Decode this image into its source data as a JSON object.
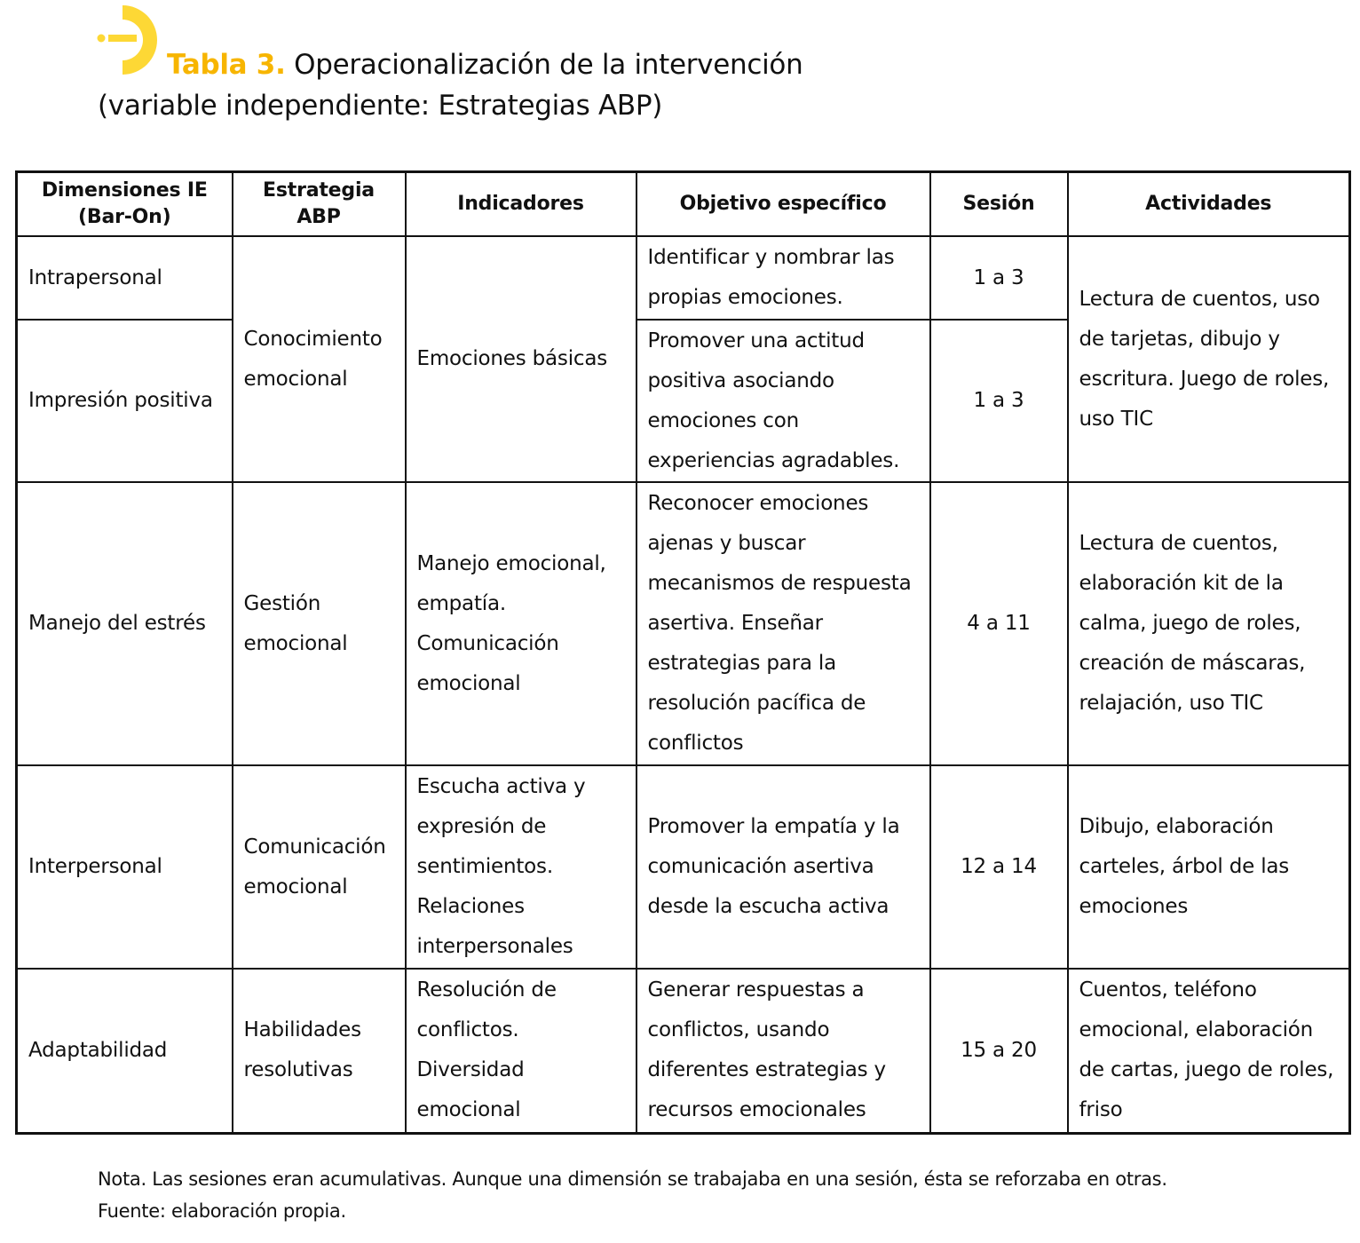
{
  "title": {
    "label": "Tabla 3.",
    "text": "Operacionalización de la intervención",
    "subtitle": "(variable independiente: Estrategias ABP)"
  },
  "colors": {
    "accent": "#f7b500",
    "logo": "#fdd835"
  },
  "table": {
    "headers": [
      "Dimensiones IE (Bar-On)",
      "Estrategia ABP",
      "Indicadores",
      "Objetivo específico",
      "Sesión",
      "Actividades"
    ],
    "rows": [
      {
        "dimension": "Intrapersonal",
        "strategy": "Conocimiento emocional",
        "indicators": "Emociones básicas",
        "objective": "Identificar y nombrar las propias emociones.",
        "session": "1 a 3",
        "activities": "Lectura de cuentos, uso de tarjetas, dibujo y escritura. Juego de roles, uso TIC"
      },
      {
        "dimension": "Impresión positiva",
        "objective": "Promover una actitud positiva asociando emociones con experiencias agradables.",
        "session": "1 a 3"
      },
      {
        "dimension": "Manejo del estrés",
        "strategy": "Gestión emocional",
        "indicators": "Manejo emocional, empatía. Comunicación emocional",
        "objective": "Reconocer emociones ajenas y buscar mecanismos de respuesta asertiva. Enseñar estrategias para la resolución pacífica de conflictos",
        "session": "4 a 11",
        "activities": "Lectura de cuentos, elaboración kit de la calma, juego de roles, creación de máscaras, relajación, uso TIC"
      },
      {
        "dimension": "Interpersonal",
        "strategy": "Comunicación emocional",
        "indicators": "Escucha activa y expresión de sentimientos. Relaciones interpersonales",
        "objective": "Promover la empatía y la comunicación asertiva desde la escucha activa",
        "session": "12 a 14",
        "activities": "Dibujo, elaboración carteles, árbol de las emociones"
      },
      {
        "dimension": "Adaptabilidad",
        "strategy": "Habilidades resolutivas",
        "indicators": "Resolución de conflictos. Diversidad emocional",
        "objective": "Generar respuestas a conflictos, usando diferentes estrategias y recursos emocionales",
        "session": "15 a 20",
        "activities": "Cuentos, teléfono emocional, elaboración de cartas, juego de roles, friso"
      }
    ]
  },
  "note": "Nota. Las sesiones eran acumulativas. Aunque una dimensión se trabajaba en una sesión, ésta se reforzaba en otras.",
  "source": "Fuente: elaboración propia."
}
